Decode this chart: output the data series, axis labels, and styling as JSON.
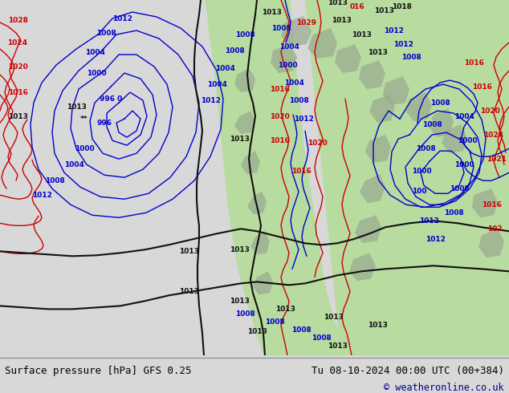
{
  "title_left": "Surface pressure [hPa] GFS 0.25",
  "title_right": "Tu 08-10-2024 00:00 UTC (00+384)",
  "copyright": "© weatheronline.co.uk",
  "bg_color": "#d8d8d8",
  "ocean_color": "#d8d8d8",
  "land_green": "#b8dba0",
  "land_gray": "#9aaa90",
  "figsize": [
    6.34,
    4.9
  ],
  "dpi": 100,
  "footer_bg": "#d8d8d8",
  "footer_line_color": "#888888"
}
